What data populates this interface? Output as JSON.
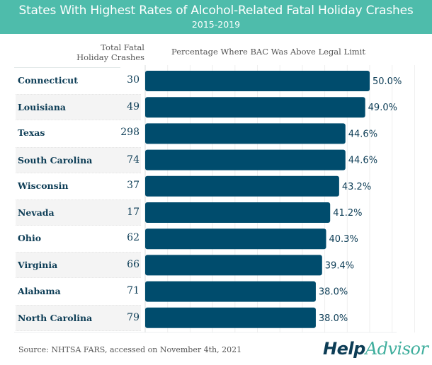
{
  "header": {
    "title": "States With Highest Rates of Alcohol-Related Fatal Holiday Crashes",
    "subtitle": "2015-2019"
  },
  "columns": {
    "crashes_line1": "Total Fatal",
    "crashes_line2": "Holiday Crashes",
    "percentage": "Percentage Where BAC Was Above Legal Limit"
  },
  "chart_data": {
    "type": "bar",
    "orientation": "horizontal",
    "title": "States With Highest Rates of Alcohol-Related Fatal Holiday Crashes",
    "subtitle": "2015-2019",
    "xlabel": "Percentage Where BAC Was Above Legal Limit",
    "ylabel": "",
    "categories": [
      "Connecticut",
      "Louisiana",
      "Texas",
      "South Carolina",
      "Wisconsin",
      "Nevada",
      "Ohio",
      "Virginia",
      "Alabama",
      "North Carolina"
    ],
    "values": [
      50.0,
      49.0,
      44.6,
      44.6,
      43.2,
      41.2,
      40.3,
      39.4,
      38.0,
      38.0
    ],
    "value_labels": [
      "50.0%",
      "49.0%",
      "44.6%",
      "44.6%",
      "43.2%",
      "41.2%",
      "40.3%",
      "39.4%",
      "38.0%",
      "38.0%"
    ],
    "total_fatal_holiday_crashes": [
      30,
      49,
      298,
      74,
      37,
      17,
      62,
      66,
      71,
      79
    ],
    "xlim": [
      0,
      60
    ],
    "grid": true,
    "bar_color": "#004c6d"
  },
  "footer": {
    "source": "Source: NHTSA FARS, accessed on November 4th, 2021",
    "logo_part1": "Help",
    "logo_part2": "Advisor"
  }
}
